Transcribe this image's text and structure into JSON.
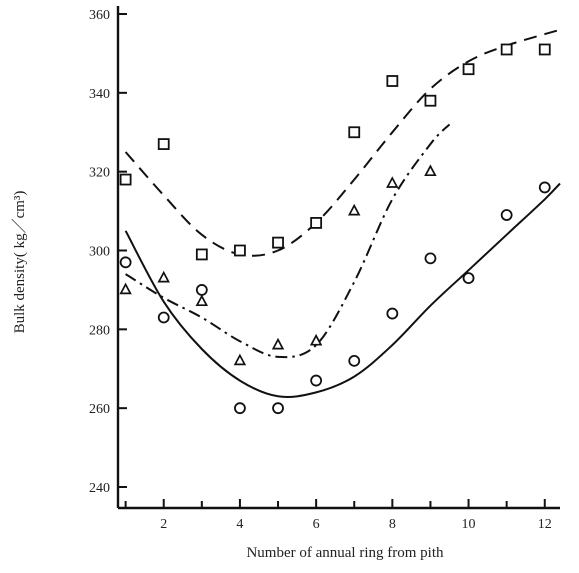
{
  "chart_data": {
    "type": "scatter",
    "xlabel": "Number of   annual ring from pith",
    "ylabel": "Bulk density( kg／cm³)",
    "xlim": [
      0.8,
      12.4
    ],
    "ylim": [
      240,
      360
    ],
    "xticks": [
      2,
      4,
      6,
      8,
      10,
      12
    ],
    "yticks": [
      240,
      260,
      280,
      300,
      320,
      340,
      360
    ],
    "xtick_labels": [
      "2",
      "4",
      "6",
      "8",
      "10",
      "12"
    ],
    "ytick_labels": [
      "240",
      "260",
      "280",
      "300",
      "320",
      "340",
      "360"
    ],
    "grid": false,
    "legend": "none",
    "series": [
      {
        "marker": "square",
        "line_style": "dashed",
        "color": "#111111",
        "points": [
          {
            "x": 1,
            "y": 318
          },
          {
            "x": 2,
            "y": 327
          },
          {
            "x": 3,
            "y": 299
          },
          {
            "x": 4,
            "y": 300
          },
          {
            "x": 5,
            "y": 302
          },
          {
            "x": 6,
            "y": 307
          },
          {
            "x": 7,
            "y": 330
          },
          {
            "x": 8,
            "y": 343
          },
          {
            "x": 9,
            "y": 338
          },
          {
            "x": 10,
            "y": 346
          },
          {
            "x": 11,
            "y": 351
          },
          {
            "x": 12,
            "y": 351
          }
        ],
        "fit": [
          {
            "x": 1,
            "y": 325
          },
          {
            "x": 2,
            "y": 314
          },
          {
            "x": 3,
            "y": 304
          },
          {
            "x": 4,
            "y": 299
          },
          {
            "x": 5,
            "y": 300
          },
          {
            "x": 6,
            "y": 307
          },
          {
            "x": 7,
            "y": 318
          },
          {
            "x": 8,
            "y": 330
          },
          {
            "x": 9,
            "y": 341
          },
          {
            "x": 10,
            "y": 348
          },
          {
            "x": 11,
            "y": 352
          },
          {
            "x": 12.4,
            "y": 356
          }
        ]
      },
      {
        "marker": "triangle",
        "line_style": "dash-dot",
        "color": "#111111",
        "points": [
          {
            "x": 1,
            "y": 290
          },
          {
            "x": 2,
            "y": 293
          },
          {
            "x": 3,
            "y": 287
          },
          {
            "x": 4,
            "y": 272
          },
          {
            "x": 5,
            "y": 276
          },
          {
            "x": 6,
            "y": 277
          },
          {
            "x": 7,
            "y": 310
          },
          {
            "x": 8,
            "y": 317
          },
          {
            "x": 9,
            "y": 320
          }
        ],
        "fit": [
          {
            "x": 1,
            "y": 294
          },
          {
            "x": 2,
            "y": 288
          },
          {
            "x": 3,
            "y": 283
          },
          {
            "x": 4,
            "y": 277
          },
          {
            "x": 5,
            "y": 273
          },
          {
            "x": 6,
            "y": 276
          },
          {
            "x": 7,
            "y": 292
          },
          {
            "x": 8,
            "y": 313
          },
          {
            "x": 9,
            "y": 327
          },
          {
            "x": 9.5,
            "y": 332
          }
        ]
      },
      {
        "marker": "circle",
        "line_style": "solid",
        "color": "#111111",
        "points": [
          {
            "x": 1,
            "y": 297
          },
          {
            "x": 2,
            "y": 283
          },
          {
            "x": 3,
            "y": 290
          },
          {
            "x": 4,
            "y": 260
          },
          {
            "x": 5,
            "y": 260
          },
          {
            "x": 6,
            "y": 267
          },
          {
            "x": 7,
            "y": 272
          },
          {
            "x": 8,
            "y": 284
          },
          {
            "x": 9,
            "y": 298
          },
          {
            "x": 10,
            "y": 293
          },
          {
            "x": 11,
            "y": 309
          },
          {
            "x": 12,
            "y": 316
          }
        ],
        "fit": [
          {
            "x": 1,
            "y": 305
          },
          {
            "x": 2,
            "y": 287
          },
          {
            "x": 3,
            "y": 275
          },
          {
            "x": 4,
            "y": 267
          },
          {
            "x": 5,
            "y": 263
          },
          {
            "x": 6,
            "y": 264
          },
          {
            "x": 7,
            "y": 268
          },
          {
            "x": 8,
            "y": 276
          },
          {
            "x": 9,
            "y": 286
          },
          {
            "x": 10,
            "y": 295
          },
          {
            "x": 11,
            "y": 304
          },
          {
            "x": 12,
            "y": 313
          },
          {
            "x": 12.4,
            "y": 317
          }
        ]
      }
    ]
  }
}
